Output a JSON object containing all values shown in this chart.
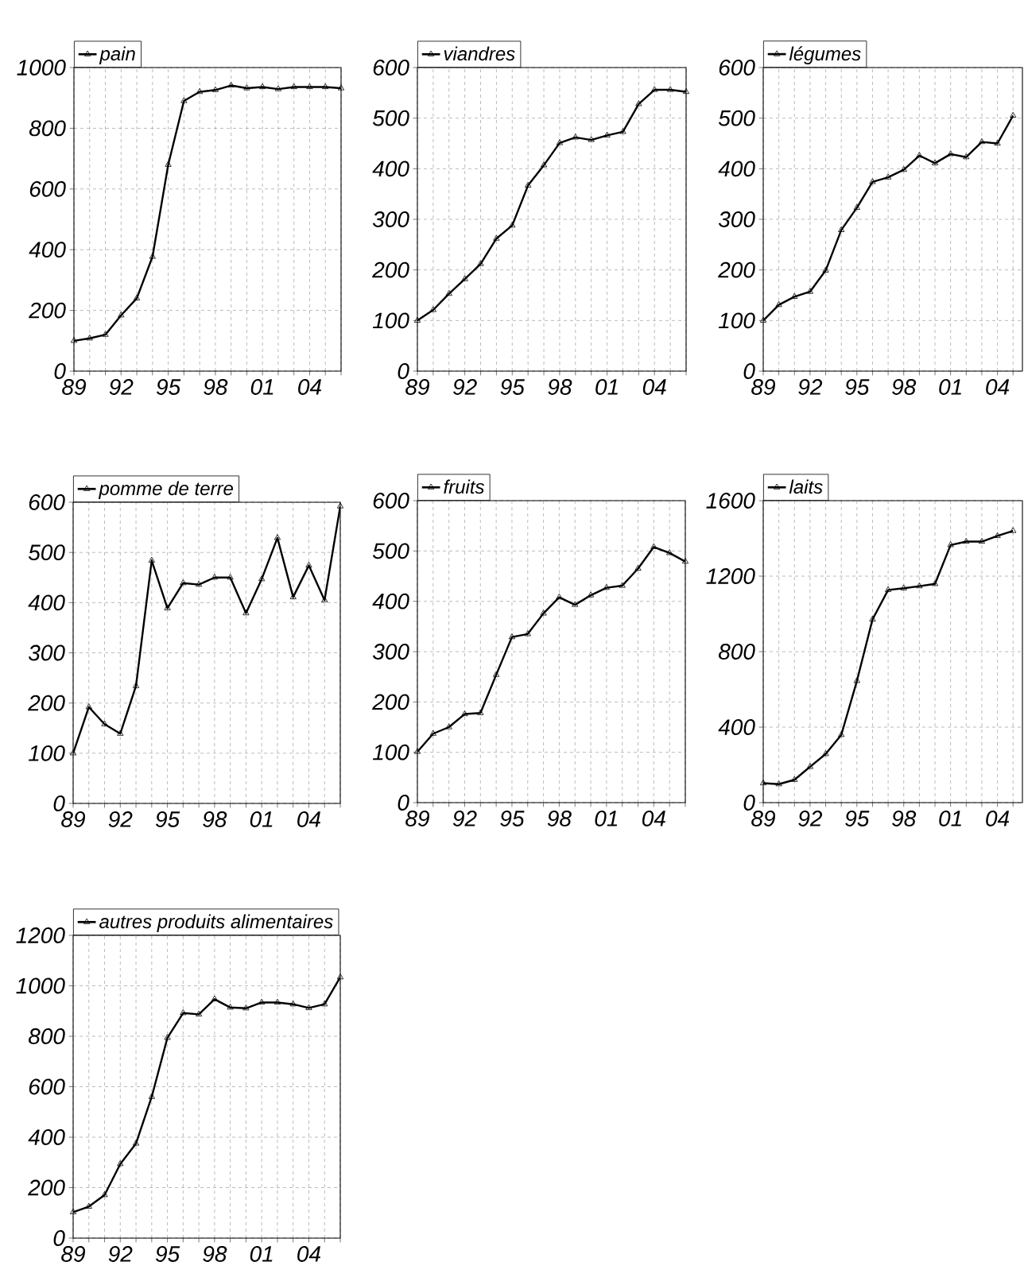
{
  "chart_data": [
    {
      "type": "line",
      "x": [
        1989,
        1990,
        1991,
        1992,
        1993,
        1994,
        1995,
        1996,
        1997,
        1998,
        1999,
        2000,
        2001,
        2002,
        2003,
        2004,
        2005,
        2006
      ],
      "series": [
        {
          "name": "pain",
          "color": "#000000",
          "values": [
            100,
            108,
            120,
            184,
            240,
            377,
            680,
            890,
            920,
            926,
            941,
            932,
            936,
            929,
            936,
            936,
            936,
            932
          ]
        }
      ],
      "xlim": [
        1989,
        2006
      ],
      "ylim": [
        0,
        1000
      ],
      "xticks": [
        {
          "value": 1989,
          "label": "89"
        },
        {
          "value": 1990,
          "label": null
        },
        {
          "value": 1991,
          "label": null
        },
        {
          "value": 1992,
          "label": "92"
        },
        {
          "value": 1993,
          "label": null
        },
        {
          "value": 1994,
          "label": null
        },
        {
          "value": 1995,
          "label": "95"
        },
        {
          "value": 1996,
          "label": null
        },
        {
          "value": 1997,
          "label": null
        },
        {
          "value": 1998,
          "label": "98"
        },
        {
          "value": 1999,
          "label": null
        },
        {
          "value": 2000,
          "label": null
        },
        {
          "value": 2001,
          "label": "01"
        },
        {
          "value": 2002,
          "label": null
        },
        {
          "value": 2003,
          "label": null
        },
        {
          "value": 2004,
          "label": "04"
        },
        {
          "value": 2005,
          "label": null
        },
        {
          "value": 2006,
          "label": null
        }
      ],
      "yticks": [
        0,
        200,
        400,
        600,
        800,
        1000
      ],
      "grid": true,
      "legend": "top left",
      "marker": "triangle",
      "line_style": "solid"
    },
    {
      "type": "line",
      "x": [
        1989,
        1990,
        1991,
        1992,
        1993,
        1994,
        1995,
        1996,
        1997,
        1998,
        1999,
        2000,
        2001,
        2002,
        2003,
        2004,
        2005,
        2006
      ],
      "series": [
        {
          "name": "viandres",
          "color": "#000000",
          "values": [
            100,
            121,
            153,
            182,
            212,
            262,
            288,
            367,
            407,
            451,
            462,
            457,
            466,
            473,
            528,
            556,
            556,
            552
          ]
        }
      ],
      "xlim": [
        1989,
        2006
      ],
      "ylim": [
        0,
        600
      ],
      "xticks": [
        {
          "value": 1989,
          "label": "89"
        },
        {
          "value": 1990,
          "label": null
        },
        {
          "value": 1991,
          "label": null
        },
        {
          "value": 1992,
          "label": "92"
        },
        {
          "value": 1993,
          "label": null
        },
        {
          "value": 1994,
          "label": null
        },
        {
          "value": 1995,
          "label": "95"
        },
        {
          "value": 1996,
          "label": null
        },
        {
          "value": 1997,
          "label": null
        },
        {
          "value": 1998,
          "label": "98"
        },
        {
          "value": 1999,
          "label": null
        },
        {
          "value": 2000,
          "label": null
        },
        {
          "value": 2001,
          "label": "01"
        },
        {
          "value": 2002,
          "label": null
        },
        {
          "value": 2003,
          "label": null
        },
        {
          "value": 2004,
          "label": "04"
        },
        {
          "value": 2005,
          "label": null
        },
        {
          "value": 2006,
          "label": null
        }
      ],
      "yticks": [
        0,
        100,
        200,
        300,
        400,
        500,
        600
      ],
      "grid": true,
      "legend": "top left",
      "marker": "triangle",
      "line_style": "solid"
    },
    {
      "type": "line",
      "x": [
        1989,
        1990,
        1991,
        1992,
        1993,
        1994,
        1995,
        1996,
        1997,
        1998,
        1999,
        2000,
        2001,
        2002,
        2003,
        2004,
        2005
      ],
      "series": [
        {
          "name": "légumes",
          "color": "#000000",
          "values": [
            100,
            131,
            147,
            157,
            199,
            279,
            323,
            374,
            383,
            398,
            426,
            411,
            429,
            423,
            453,
            450,
            505
          ]
        }
      ],
      "xlim": [
        1989,
        2005.6
      ],
      "ylim": [
        0,
        600
      ],
      "xticks": [
        {
          "value": 1989,
          "label": "89"
        },
        {
          "value": 1990,
          "label": null
        },
        {
          "value": 1991,
          "label": null
        },
        {
          "value": 1992,
          "label": "92"
        },
        {
          "value": 1993,
          "label": null
        },
        {
          "value": 1994,
          "label": null
        },
        {
          "value": 1995,
          "label": "95"
        },
        {
          "value": 1996,
          "label": null
        },
        {
          "value": 1997,
          "label": null
        },
        {
          "value": 1998,
          "label": "98"
        },
        {
          "value": 1999,
          "label": null
        },
        {
          "value": 2000,
          "label": null
        },
        {
          "value": 2001,
          "label": "01"
        },
        {
          "value": 2002,
          "label": null
        },
        {
          "value": 2003,
          "label": null
        },
        {
          "value": 2004,
          "label": "04"
        },
        {
          "value": 2005,
          "label": null
        }
      ],
      "yticks": [
        0,
        100,
        200,
        300,
        400,
        500,
        600
      ],
      "grid": true,
      "legend": "top left",
      "marker": "triangle",
      "line_style": "solid"
    },
    {
      "type": "line",
      "x": [
        1989,
        1990,
        1991,
        1992,
        1993,
        1994,
        1995,
        1996,
        1997,
        1998,
        1999,
        2000,
        2001,
        2002,
        2003,
        2004,
        2005,
        2006
      ],
      "series": [
        {
          "name": "pomme de terre",
          "color": "#000000",
          "values": [
            100,
            192,
            158,
            139,
            234,
            484,
            389,
            439,
            436,
            450,
            450,
            379,
            447,
            529,
            411,
            474,
            405,
            592
          ]
        }
      ],
      "xlim": [
        1989,
        2006
      ],
      "ylim": [
        0,
        600
      ],
      "xticks": [
        {
          "value": 1989,
          "label": "89"
        },
        {
          "value": 1990,
          "label": null
        },
        {
          "value": 1991,
          "label": null
        },
        {
          "value": 1992,
          "label": "92"
        },
        {
          "value": 1993,
          "label": null
        },
        {
          "value": 1994,
          "label": null
        },
        {
          "value": 1995,
          "label": "95"
        },
        {
          "value": 1996,
          "label": null
        },
        {
          "value": 1997,
          "label": null
        },
        {
          "value": 1998,
          "label": "98"
        },
        {
          "value": 1999,
          "label": null
        },
        {
          "value": 2000,
          "label": null
        },
        {
          "value": 2001,
          "label": "01"
        },
        {
          "value": 2002,
          "label": null
        },
        {
          "value": 2003,
          "label": null
        },
        {
          "value": 2004,
          "label": "04"
        },
        {
          "value": 2005,
          "label": null
        },
        {
          "value": 2006,
          "label": null
        }
      ],
      "yticks": [
        0,
        100,
        200,
        300,
        400,
        500,
        600
      ],
      "grid": true,
      "legend": "top left",
      "marker": "triangle",
      "line_style": "solid"
    },
    {
      "type": "line",
      "x": [
        1989,
        1990,
        1991,
        1992,
        1993,
        1994,
        1995,
        1996,
        1997,
        1998,
        1999,
        2000,
        2001,
        2002,
        2003,
        2004,
        2005,
        2006
      ],
      "series": [
        {
          "name": "fruits",
          "color": "#000000",
          "values": [
            101,
            137,
            150,
            176,
            178,
            254,
            329,
            335,
            376,
            408,
            393,
            412,
            427,
            431,
            465,
            508,
            496,
            479
          ]
        }
      ],
      "xlim": [
        1989,
        2006
      ],
      "ylim": [
        0,
        600
      ],
      "xticks": [
        {
          "value": 1989,
          "label": "89"
        },
        {
          "value": 1990,
          "label": null
        },
        {
          "value": 1991,
          "label": null
        },
        {
          "value": 1992,
          "label": "92"
        },
        {
          "value": 1993,
          "label": null
        },
        {
          "value": 1994,
          "label": null
        },
        {
          "value": 1995,
          "label": "95"
        },
        {
          "value": 1996,
          "label": null
        },
        {
          "value": 1997,
          "label": null
        },
        {
          "value": 1998,
          "label": "98"
        },
        {
          "value": 1999,
          "label": null
        },
        {
          "value": 2000,
          "label": null
        },
        {
          "value": 2001,
          "label": "01"
        },
        {
          "value": 2002,
          "label": null
        },
        {
          "value": 2003,
          "label": null
        },
        {
          "value": 2004,
          "label": "04"
        },
        {
          "value": 2005,
          "label": null
        },
        {
          "value": 2006,
          "label": null
        }
      ],
      "yticks": [
        0,
        100,
        200,
        300,
        400,
        500,
        600
      ],
      "grid": true,
      "legend": "top left",
      "marker": "triangle",
      "line_style": "solid"
    },
    {
      "type": "line",
      "x": [
        1989,
        1990,
        1991,
        1992,
        1993,
        1994,
        1995,
        1996,
        1997,
        1998,
        1999,
        2000,
        2001,
        2002,
        2003,
        2004,
        2005
      ],
      "series": [
        {
          "name": "laits",
          "color": "#000000",
          "values": [
            103,
            98,
            121,
            190,
            258,
            359,
            645,
            971,
            1127,
            1136,
            1147,
            1159,
            1365,
            1383,
            1383,
            1413,
            1440
          ]
        }
      ],
      "xlim": [
        1989,
        2005.6
      ],
      "ylim": [
        0,
        1600
      ],
      "xticks": [
        {
          "value": 1989,
          "label": "89"
        },
        {
          "value": 1990,
          "label": null
        },
        {
          "value": 1991,
          "label": null
        },
        {
          "value": 1992,
          "label": "92"
        },
        {
          "value": 1993,
          "label": null
        },
        {
          "value": 1994,
          "label": null
        },
        {
          "value": 1995,
          "label": "95"
        },
        {
          "value": 1996,
          "label": null
        },
        {
          "value": 1997,
          "label": null
        },
        {
          "value": 1998,
          "label": "98"
        },
        {
          "value": 1999,
          "label": null
        },
        {
          "value": 2000,
          "label": null
        },
        {
          "value": 2001,
          "label": "01"
        },
        {
          "value": 2002,
          "label": null
        },
        {
          "value": 2003,
          "label": null
        },
        {
          "value": 2004,
          "label": "04"
        },
        {
          "value": 2005,
          "label": null
        }
      ],
      "yticks": [
        0,
        400,
        800,
        1200,
        1600
      ],
      "grid": true,
      "legend": "top left",
      "marker": "triangle",
      "line_style": "solid"
    },
    {
      "type": "line",
      "x": [
        1989,
        1990,
        1991,
        1992,
        1993,
        1994,
        1995,
        1996,
        1997,
        1998,
        1999,
        2000,
        2001,
        2002,
        2003,
        2004,
        2005,
        2006
      ],
      "series": [
        {
          "name": "autres produits alimentaires",
          "color": "#000000",
          "values": [
            103,
            125,
            171,
            294,
            375,
            560,
            794,
            892,
            887,
            947,
            914,
            911,
            934,
            934,
            927,
            912,
            927,
            1034
          ]
        }
      ],
      "xlim": [
        1989,
        2006
      ],
      "ylim": [
        0,
        1200
      ],
      "xticks": [
        {
          "value": 1989,
          "label": "89"
        },
        {
          "value": 1990,
          "label": null
        },
        {
          "value": 1991,
          "label": null
        },
        {
          "value": 1992,
          "label": "92"
        },
        {
          "value": 1993,
          "label": null
        },
        {
          "value": 1994,
          "label": null
        },
        {
          "value": 1995,
          "label": "95"
        },
        {
          "value": 1996,
          "label": null
        },
        {
          "value": 1997,
          "label": null
        },
        {
          "value": 1998,
          "label": "98"
        },
        {
          "value": 1999,
          "label": null
        },
        {
          "value": 2000,
          "label": null
        },
        {
          "value": 2001,
          "label": "01"
        },
        {
          "value": 2002,
          "label": null
        },
        {
          "value": 2003,
          "label": null
        },
        {
          "value": 2004,
          "label": "04"
        },
        {
          "value": 2005,
          "label": null
        },
        {
          "value": 2006,
          "label": null
        }
      ],
      "yticks": [
        0,
        200,
        400,
        600,
        800,
        1000,
        1200
      ],
      "grid": true,
      "legend": "top left",
      "marker": "triangle",
      "line_style": "solid"
    }
  ]
}
